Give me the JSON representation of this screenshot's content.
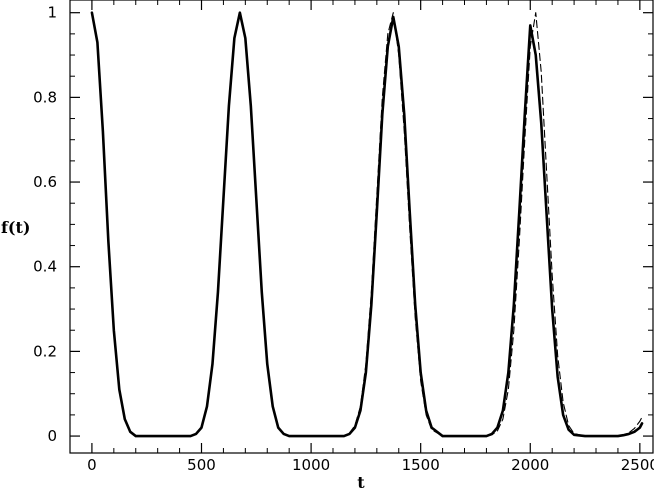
{
  "chart_data": {
    "type": "line",
    "xlabel": "t",
    "ylabel": "f(t)",
    "xlim": [
      -100,
      2560
    ],
    "ylim": [
      -0.04,
      1.03
    ],
    "xticks": [
      0,
      500,
      1000,
      1500,
      2000,
      2500
    ],
    "xtick_labels": [
      "0",
      "500",
      "1000",
      "1500",
      "2000",
      "2500"
    ],
    "yticks": [
      0,
      0.2,
      0.4,
      0.6,
      0.8,
      1
    ],
    "ytick_labels": [
      "0",
      "0.2",
      "0.4",
      "0.6",
      "0.8",
      "1"
    ],
    "grid": false,
    "series": [
      {
        "style": "solid-thick",
        "x": [
          0,
          25,
          50,
          75,
          100,
          125,
          150,
          175,
          200,
          250,
          300,
          350,
          400,
          450,
          475,
          500,
          525,
          550,
          575,
          600,
          625,
          650,
          675,
          700,
          725,
          750,
          775,
          800,
          825,
          850,
          875,
          900,
          950,
          1000,
          1050,
          1100,
          1150,
          1175,
          1200,
          1225,
          1250,
          1275,
          1300,
          1325,
          1350,
          1375,
          1400,
          1425,
          1450,
          1475,
          1500,
          1525,
          1550,
          1600,
          1650,
          1700,
          1750,
          1800,
          1825,
          1850,
          1875,
          1900,
          1925,
          1950,
          1975,
          2000,
          2025,
          2050,
          2075,
          2100,
          2125,
          2150,
          2175,
          2200,
          2250,
          2300,
          2350,
          2400,
          2425,
          2450,
          2475,
          2500,
          2510
        ],
        "y": [
          1.0,
          0.93,
          0.72,
          0.46,
          0.25,
          0.11,
          0.04,
          0.01,
          0.0,
          0.0,
          0.0,
          0.0,
          0.0,
          0.0,
          0.005,
          0.02,
          0.07,
          0.17,
          0.34,
          0.56,
          0.78,
          0.94,
          1.0,
          0.94,
          0.78,
          0.56,
          0.34,
          0.17,
          0.07,
          0.02,
          0.005,
          0.0,
          0.0,
          0.0,
          0.0,
          0.0,
          0.0,
          0.005,
          0.02,
          0.06,
          0.15,
          0.31,
          0.53,
          0.76,
          0.92,
          0.99,
          0.92,
          0.76,
          0.53,
          0.31,
          0.15,
          0.06,
          0.02,
          0.0,
          0.0,
          0.0,
          0.0,
          0.0,
          0.005,
          0.02,
          0.06,
          0.15,
          0.31,
          0.53,
          0.76,
          0.97,
          0.9,
          0.74,
          0.52,
          0.3,
          0.14,
          0.05,
          0.015,
          0.003,
          0.0,
          0.0,
          0.0,
          0.0,
          0.002,
          0.005,
          0.01,
          0.02,
          0.03
        ]
      },
      {
        "style": "dashed",
        "x": [
          0,
          25,
          50,
          75,
          100,
          125,
          150,
          175,
          200,
          250,
          300,
          350,
          400,
          450,
          475,
          500,
          525,
          550,
          575,
          600,
          625,
          650,
          675,
          700,
          725,
          750,
          775,
          800,
          825,
          850,
          875,
          900,
          950,
          1000,
          1050,
          1100,
          1150,
          1175,
          1200,
          1225,
          1250,
          1275,
          1300,
          1325,
          1350,
          1375,
          1400,
          1425,
          1450,
          1475,
          1500,
          1525,
          1550,
          1600,
          1650,
          1700,
          1750,
          1800,
          1825,
          1850,
          1875,
          1900,
          1925,
          1950,
          1975,
          2000,
          2025,
          2050,
          2075,
          2100,
          2125,
          2150,
          2175,
          2200,
          2250,
          2300,
          2350,
          2400,
          2425,
          2450,
          2475,
          2500,
          2510
        ],
        "y": [
          1.0,
          0.93,
          0.72,
          0.46,
          0.25,
          0.11,
          0.04,
          0.01,
          0.0,
          0.0,
          0.0,
          0.0,
          0.0,
          0.0,
          0.005,
          0.02,
          0.07,
          0.17,
          0.34,
          0.56,
          0.78,
          0.94,
          1.0,
          0.94,
          0.78,
          0.56,
          0.34,
          0.17,
          0.07,
          0.02,
          0.005,
          0.0,
          0.0,
          0.0,
          0.0,
          0.0,
          0.0,
          0.007,
          0.025,
          0.07,
          0.17,
          0.34,
          0.57,
          0.8,
          0.95,
          1.0,
          0.9,
          0.72,
          0.49,
          0.28,
          0.13,
          0.05,
          0.015,
          0.0,
          0.0,
          0.0,
          0.0,
          0.0,
          0.003,
          0.012,
          0.04,
          0.11,
          0.25,
          0.46,
          0.7,
          0.92,
          1.0,
          0.86,
          0.62,
          0.38,
          0.19,
          0.08,
          0.025,
          0.006,
          0.0,
          0.0,
          0.0,
          0.0,
          0.003,
          0.008,
          0.018,
          0.035,
          0.045
        ]
      }
    ]
  }
}
